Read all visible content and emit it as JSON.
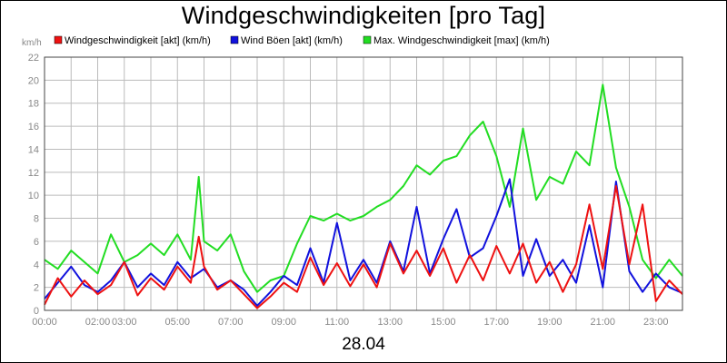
{
  "chart_data": {
    "type": "line",
    "title": "Windgeschwindigkeiten [pro Tag]",
    "unit": "km/h",
    "date": "28.04",
    "ylim": [
      0,
      22
    ],
    "yticks": [
      "0",
      "2",
      "4",
      "6",
      "8",
      "10",
      "12",
      "14",
      "16",
      "18",
      "20",
      "22"
    ],
    "xlim": [
      0,
      24
    ],
    "xticks": [
      "00:00",
      "02:00",
      "03:00",
      "05:00",
      "07:00",
      "09:00",
      "11:00",
      "13:00",
      "15:00",
      "17:00",
      "19:00",
      "21:00",
      "23:00"
    ],
    "xtick_hours": [
      0,
      2,
      3,
      5,
      7,
      9,
      11,
      13,
      15,
      17,
      19,
      21,
      23
    ],
    "grid": true,
    "legend_position": "top",
    "series": [
      {
        "name": "Windgeschwindigkeit [akt] (km/h)",
        "color": "#ee1111",
        "x": [
          0,
          0.5,
          1,
          1.5,
          2,
          2.5,
          3,
          3.5,
          4,
          4.5,
          5,
          5.5,
          5.8,
          6,
          6.5,
          7,
          7.5,
          8,
          8.5,
          9,
          9.5,
          10,
          10.5,
          11,
          11.5,
          12,
          12.5,
          13,
          13.5,
          14,
          14.5,
          15,
          15.5,
          16,
          16.5,
          17,
          17.5,
          18,
          18.5,
          19,
          19.5,
          20,
          20.5,
          21,
          21.5,
          22,
          22.5,
          23,
          23.5,
          24
        ],
        "values": [
          0.5,
          2.8,
          1.2,
          2.6,
          1.4,
          2.2,
          4.2,
          1.3,
          2.8,
          1.8,
          3.8,
          2.4,
          6.4,
          3.8,
          1.8,
          2.6,
          1.4,
          0.2,
          1.2,
          2.4,
          1.6,
          4.6,
          2.2,
          4.1,
          2.1,
          4.0,
          2.0,
          5.8,
          3.2,
          5.2,
          3.0,
          5.4,
          2.4,
          4.8,
          2.6,
          5.6,
          3.2,
          5.8,
          2.4,
          4.2,
          1.6,
          4.0,
          9.2,
          3.6,
          10.8,
          4.0,
          9.2,
          0.8,
          2.6,
          1.4
        ]
      },
      {
        "name": "Wind Böen [akt] (km/h)",
        "color": "#1111dd",
        "x": [
          0,
          0.5,
          1,
          1.5,
          2,
          2.5,
          3,
          3.5,
          4,
          4.5,
          5,
          5.5,
          6,
          6.5,
          7,
          7.5,
          8,
          8.5,
          9,
          9.5,
          10,
          10.5,
          11,
          11.5,
          12,
          12.5,
          13,
          13.5,
          14,
          14.5,
          15,
          15.5,
          16,
          16.5,
          17,
          17.5,
          18,
          18.5,
          19,
          19.5,
          20,
          20.5,
          21,
          21.5,
          22,
          22.5,
          23,
          23.5,
          24
        ],
        "values": [
          1.0,
          2.4,
          3.8,
          2.2,
          1.6,
          2.6,
          4.2,
          2.0,
          3.2,
          2.2,
          4.2,
          2.8,
          3.6,
          2.0,
          2.6,
          1.8,
          0.4,
          1.6,
          3.0,
          2.2,
          5.4,
          2.4,
          7.6,
          2.6,
          4.4,
          2.4,
          6.0,
          3.4,
          9.0,
          3.2,
          6.2,
          8.8,
          4.6,
          5.4,
          8.2,
          11.4,
          3.0,
          6.2,
          3.0,
          4.4,
          2.4,
          7.4,
          2.0,
          11.2,
          3.4,
          1.6,
          3.2,
          2.0,
          1.5
        ]
      },
      {
        "name": "Max. Windgeschwindigkeit [max] (km/h)",
        "color": "#22dd22",
        "x": [
          0,
          0.5,
          1,
          1.5,
          2,
          2.5,
          3,
          3.5,
          4,
          4.5,
          5,
          5.5,
          5.8,
          6,
          6.5,
          7,
          7.5,
          8,
          8.5,
          9,
          9.5,
          10,
          10.5,
          11,
          11.5,
          12,
          12.5,
          13,
          13.5,
          14,
          14.5,
          15,
          15.5,
          16,
          16.5,
          17,
          17.5,
          18,
          18.5,
          19,
          19.5,
          20,
          20.5,
          21,
          21.5,
          22,
          22.5,
          23,
          23.5,
          24
        ],
        "values": [
          4.4,
          3.6,
          5.2,
          4.2,
          3.2,
          6.6,
          4.2,
          4.8,
          5.8,
          4.8,
          6.6,
          4.4,
          11.6,
          6.0,
          5.2,
          6.6,
          3.4,
          1.6,
          2.6,
          3.0,
          5.8,
          8.2,
          7.8,
          8.4,
          7.8,
          8.2,
          9.0,
          9.6,
          10.8,
          12.6,
          11.8,
          13.0,
          13.4,
          15.2,
          16.4,
          13.4,
          9.0,
          15.8,
          9.6,
          11.6,
          11.0,
          13.8,
          12.6,
          19.6,
          12.4,
          9.0,
          4.4,
          2.8,
          4.4,
          3.0
        ]
      }
    ]
  }
}
